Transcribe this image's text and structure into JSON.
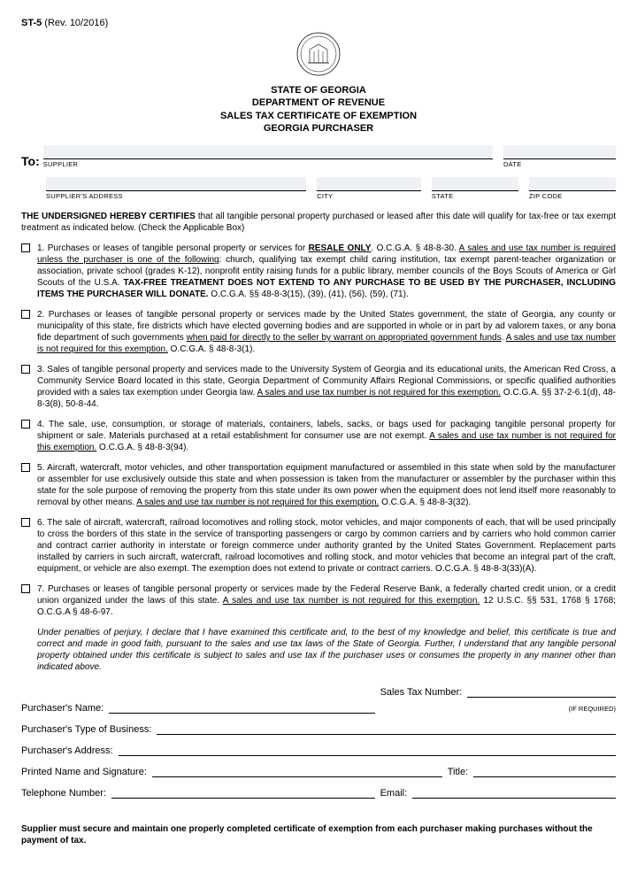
{
  "form": {
    "id": "ST-5",
    "rev": "(Rev. 10/2016)"
  },
  "header": {
    "l1": "STATE OF GEORGIA",
    "l2": "DEPARTMENT OF REVENUE",
    "l3": "SALES TAX CERTIFICATE OF EXEMPTION",
    "l4": "GEORGIA PURCHASER"
  },
  "to_label": "To:",
  "fields": {
    "supplier": "SUPPLIER",
    "date": "DATE",
    "supplier_address": "SUPPLIER'S ADDRESS",
    "city": "CITY",
    "state": "STATE",
    "zip": "ZIP CODE"
  },
  "certify_lead": "THE UNDERSIGNED HEREBY CERTIFIES",
  "certify_rest": " that all tangible personal property purchased or leased after this date will qualify for tax-free or tax exempt treatment as indicated below. (Check the Applicable Box)",
  "items": [
    "1. Purchases or leases of tangible personal property or services for <b><u>RESALE ONLY</u></b>. O.C.G.A. § 48-8-30. <u>A sales and use tax number is required unless the purchaser is one of the following</u>:  church, qualifying tax exempt child caring institution, tax exempt parent-teacher organization or association, private school (grades K-12), nonprofit entity raising funds for a public library, member councils of the Boys Scouts of America or Girl Scouts of the U.S.A. <b>TAX-FREE TREATMENT DOES NOT EXTEND TO ANY PURCHASE TO BE USED BY THE PURCHASER, INCLUDING ITEMS THE PURCHASER WILL DONATE.</b> O.C.G.A. §§ 48-8-3(15), (39), (41), (56), (59), (71).",
    "2. Purchases or leases of tangible personal property or services made by the United States government, the state of Georgia, any county or municipality of this state, fire districts which have elected governing bodies and are supported in whole or in part by ad valorem taxes, or any bona fide department of such governments <u>when paid for directly to the seller by warrant on appropriated government funds</u>. <u>A sales and use tax number is not required for this exemption.</u> O.C.G.A. § 48-8-3(1).",
    "3. Sales of tangible personal property and services made to the University System of Georgia and its educational units, the American Red Cross, a Community Service Board located in this state, Georgia Department of Community Affairs Regional Commissions, or specific qualified authorities provided with a sales tax exemption under Georgia law. <u>A sales and use tax number is not required for this exemption.</u> O.C.G.A. §§ 37-2-6.1(d), 48-8-3(8), 50-8-44.",
    "4. The sale, use, consumption, or storage of materials, containers, labels, sacks, or bags used for packaging tangible personal property for shipment or sale. Materials purchased at a retail establishment for consumer use are not exempt.  <u>A sales and use tax number is not required for this exemption.</u> O.C.G.A. § 48-8-3(94).",
    "5. Aircraft, watercraft, motor vehicles, and other transportation equipment manufactured or assembled in this state when sold by the manufacturer or assembler for use exclusively outside this state and when possession is taken from the manufacturer or assembler by the purchaser within this state for the sole purpose of removing the property from this state under its own power when the equipment does not lend itself more reasonably to removal by other means.  <u>A sales and use tax number is not required for this exemption.</u> O.C.G.A. § 48-8-3(32).",
    "6. The sale of aircraft, watercraft, railroad locomotives and rolling stock, motor vehicles, and major components of each, that will be used principally to cross the borders of this state in the service of transporting passengers or cargo by common carriers and by carriers who hold common carrier and contract carrier authority in interstate or foreign commerce under authority granted by the United States Government. Replacement parts installed by carriers in such aircraft, watercraft, railroad locomotives and rolling stock, and motor vehicles that become an integral part of the craft, equipment, or vehicle are also exempt. The exemption does not extend to private or contract carriers. O.C.G.A. § 48-8-3(33)(A).",
    "7. Purchases or leases of tangible personal property or services made by the Federal Reserve Bank, a federally charted credit union, or a credit union organized under the laws of this state. <u>A sales and use tax number is not required for this exemption.</u> 12 U.S.C. §§ 531, 1768 § 1768; O.C.G.A § 48-6-97."
  ],
  "perjury": "Under penalties of perjury, I declare that I have examined this certificate and, to the best of my knowledge and belief, this certificate is true and correct and made in good faith, pursuant to the sales and use tax laws of the State of Georgia.  Further, I understand that any tangible personal property obtained under this certificate is subject to sales and use tax if the purchaser uses or consumes the property in any manner other than indicated above.",
  "sig": {
    "purchaser_name": "Purchaser's Name:",
    "sales_tax": "Sales Tax Number:",
    "if_required": "(IF REQUIRED)",
    "type_biz": "Purchaser's Type of Business:",
    "address": "Purchaser's Address:",
    "printed_sig": "Printed Name and Signature:",
    "title": "Title:",
    "phone": "Telephone Number:",
    "email": "Email:"
  },
  "footer": "Supplier must secure and maintain one properly completed certificate of exemption from each purchaser making purchases without the payment of tax."
}
